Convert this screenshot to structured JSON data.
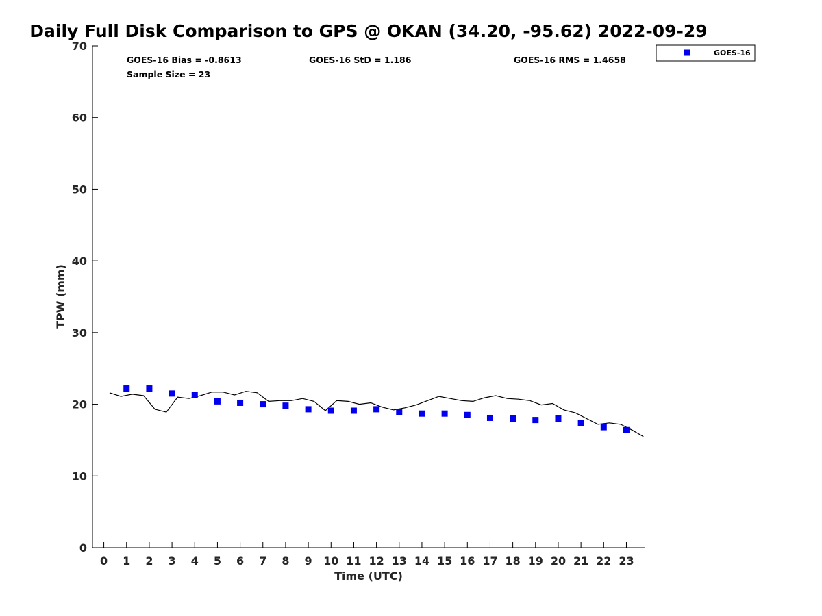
{
  "chart_data": {
    "type": "scatter",
    "title": "Daily Full Disk Comparison to GPS @ OKAN (34.20, -95.62) 2022-09-29",
    "xlabel": "Time (UTC)",
    "ylabel": "TPW (mm)",
    "xlim": [
      -0.5,
      23.8
    ],
    "ylim": [
      0,
      70
    ],
    "x_ticks": [
      0,
      1,
      2,
      3,
      4,
      5,
      6,
      7,
      8,
      9,
      10,
      11,
      12,
      13,
      14,
      15,
      16,
      17,
      18,
      19,
      20,
      21,
      22,
      23
    ],
    "y_ticks": [
      0,
      10,
      20,
      30,
      40,
      50,
      60,
      70
    ],
    "grid": false,
    "legend_position": "top-right",
    "stats": {
      "bias": "GOES-16 Bias = -0.8613",
      "std": "GOES-16 StD = 1.186",
      "rms": "GOES-16 RMS = 1.4658",
      "sample": "Sample Size = 23"
    },
    "series": [
      {
        "name": "GOES-16",
        "style": "markers",
        "color": "#0000ee",
        "x": [
          1,
          2,
          3,
          4,
          5,
          6,
          7,
          8,
          9,
          10,
          11,
          12,
          13,
          14,
          15,
          16,
          17,
          18,
          19,
          20,
          21,
          22,
          23
        ],
        "y": [
          22.2,
          22.2,
          21.5,
          21.3,
          20.4,
          20.2,
          20.0,
          19.8,
          19.3,
          19.1,
          19.1,
          19.3,
          18.9,
          18.7,
          18.7,
          18.5,
          18.1,
          18.0,
          17.8,
          18.0,
          17.4,
          16.8,
          16.4
        ]
      },
      {
        "style": "line",
        "color": "#000000",
        "x": [
          0.25,
          0.75,
          1.25,
          1.75,
          2.25,
          2.75,
          3.25,
          3.75,
          4.25,
          4.75,
          5.25,
          5.75,
          6.25,
          6.75,
          7.25,
          7.75,
          8.25,
          8.75,
          9.25,
          9.75,
          10.25,
          10.75,
          11.25,
          11.75,
          12.25,
          12.75,
          13.25,
          13.75,
          14.25,
          14.75,
          15.25,
          15.75,
          16.25,
          16.75,
          17.25,
          17.75,
          18.25,
          18.75,
          19.25,
          19.75,
          20.25,
          20.75,
          21.25,
          21.75,
          22.25,
          22.75,
          23.25,
          23.75
        ],
        "y": [
          21.6,
          21.1,
          21.4,
          21.2,
          19.3,
          18.9,
          21.0,
          20.8,
          21.2,
          21.7,
          21.7,
          21.3,
          21.8,
          21.6,
          20.4,
          20.5,
          20.5,
          20.8,
          20.4,
          19.1,
          20.5,
          20.4,
          20.0,
          20.2,
          19.6,
          19.2,
          19.5,
          19.9,
          20.5,
          21.1,
          20.8,
          20.5,
          20.4,
          20.9,
          21.2,
          20.8,
          20.7,
          20.5,
          19.9,
          20.1,
          19.2,
          18.8,
          18.0,
          17.2,
          17.4,
          17.2,
          16.4,
          15.5
        ]
      }
    ]
  }
}
